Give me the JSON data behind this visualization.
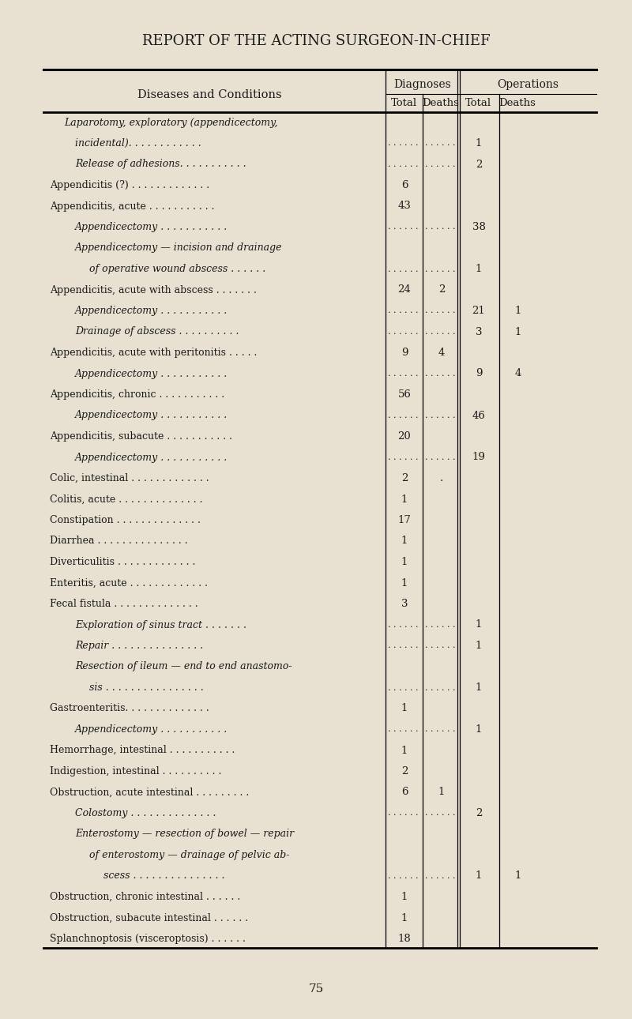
{
  "title": "REPORT OF THE ACTING SURGEON-IN-CHIEF",
  "page_number": "75",
  "bg_color": "#e8e0d0",
  "header_col1": "Diseases and Conditions",
  "header_diag": "Diagnoses",
  "header_ops": "Operations",
  "header_total": "Total",
  "header_deaths": "Deaths",
  "rows": [
    {
      "indent": 1,
      "text": "Laparotomy, exploratory (appendicectomy,",
      "diag_total": "",
      "diag_deaths": "",
      "ops_total": "",
      "ops_deaths": "",
      "dots_diag": false
    },
    {
      "indent": 2,
      "text": "incidental). . . . . . . . . . . .",
      "diag_total": "",
      "diag_deaths": "",
      "ops_total": "1",
      "ops_deaths": "",
      "dots_diag": true
    },
    {
      "indent": 2,
      "text": "Release of adhesions. . . . . . . . . . .",
      "diag_total": "",
      "diag_deaths": "",
      "ops_total": "2",
      "ops_deaths": "",
      "dots_diag": true
    },
    {
      "indent": 0,
      "text": "Appendicitis (?) . . . . . . . . . . . . .",
      "diag_total": "6",
      "diag_deaths": "",
      "ops_total": "",
      "ops_deaths": "",
      "dots_diag": false
    },
    {
      "indent": 0,
      "text": "Appendicitis, acute . . . . . . . . . . .",
      "diag_total": "43",
      "diag_deaths": "",
      "ops_total": "",
      "ops_deaths": "",
      "dots_diag": false
    },
    {
      "indent": 2,
      "text": "Appendicectomy . . . . . . . . . . .",
      "diag_total": "",
      "diag_deaths": "",
      "ops_total": "38",
      "ops_deaths": "",
      "dots_diag": true
    },
    {
      "indent": 2,
      "text": "Appendicectomy — incision and drainage",
      "diag_total": "",
      "diag_deaths": "",
      "ops_total": "",
      "ops_deaths": "",
      "dots_diag": false
    },
    {
      "indent": 3,
      "text": "of operative wound abscess . . . . . .",
      "diag_total": "",
      "diag_deaths": "",
      "ops_total": "1",
      "ops_deaths": "",
      "dots_diag": true
    },
    {
      "indent": 0,
      "text": "Appendicitis, acute with abscess . . . . . . .",
      "diag_total": "24",
      "diag_deaths": "2",
      "ops_total": "",
      "ops_deaths": "",
      "dots_diag": false
    },
    {
      "indent": 2,
      "text": "Appendicectomy . . . . . . . . . . .",
      "diag_total": "",
      "diag_deaths": "",
      "ops_total": "21",
      "ops_deaths": "1",
      "dots_diag": true
    },
    {
      "indent": 2,
      "text": "Drainage of abscess . . . . . . . . . .",
      "diag_total": "",
      "diag_deaths": "",
      "ops_total": "3",
      "ops_deaths": "1",
      "dots_diag": true
    },
    {
      "indent": 0,
      "text": "Appendicitis, acute with peritonitis . . . . .",
      "diag_total": "9",
      "diag_deaths": "4",
      "ops_total": "",
      "ops_deaths": "",
      "dots_diag": false
    },
    {
      "indent": 2,
      "text": "Appendicectomy . . . . . . . . . . .",
      "diag_total": "",
      "diag_deaths": "",
      "ops_total": "9",
      "ops_deaths": "4",
      "dots_diag": true
    },
    {
      "indent": 0,
      "text": "Appendicitis, chronic . . . . . . . . . . .",
      "diag_total": "56",
      "diag_deaths": "",
      "ops_total": "",
      "ops_deaths": "",
      "dots_diag": false
    },
    {
      "indent": 2,
      "text": "Appendicectomy . . . . . . . . . . .",
      "diag_total": "",
      "diag_deaths": "",
      "ops_total": "46",
      "ops_deaths": "",
      "dots_diag": true
    },
    {
      "indent": 0,
      "text": "Appendicitis, subacute . . . . . . . . . . .",
      "diag_total": "20",
      "diag_deaths": "",
      "ops_total": "",
      "ops_deaths": "",
      "dots_diag": false
    },
    {
      "indent": 2,
      "text": "Appendicectomy . . . . . . . . . . .",
      "diag_total": "",
      "diag_deaths": "",
      "ops_total": "19",
      "ops_deaths": "",
      "dots_diag": true
    },
    {
      "indent": 0,
      "text": "Colic, intestinal . . . . . . . . . . . . .",
      "diag_total": "2",
      "diag_deaths": ".",
      "ops_total": "",
      "ops_deaths": "",
      "dots_diag": false
    },
    {
      "indent": 0,
      "text": "Colitis, acute . . . . . . . . . . . . . .",
      "diag_total": "1",
      "diag_deaths": "",
      "ops_total": "",
      "ops_deaths": "",
      "dots_diag": false
    },
    {
      "indent": 0,
      "text": "Constipation . . . . . . . . . . . . . .",
      "diag_total": "17",
      "diag_deaths": "",
      "ops_total": "",
      "ops_deaths": "",
      "dots_diag": false
    },
    {
      "indent": 0,
      "text": "Diarrhea . . . . . . . . . . . . . . .",
      "diag_total": "1",
      "diag_deaths": "",
      "ops_total": "",
      "ops_deaths": "",
      "dots_diag": false
    },
    {
      "indent": 0,
      "text": "Diverticulitis . . . . . . . . . . . . .",
      "diag_total": "1",
      "diag_deaths": "",
      "ops_total": "",
      "ops_deaths": "",
      "dots_diag": false
    },
    {
      "indent": 0,
      "text": "Enteritis, acute . . . . . . . . . . . . .",
      "diag_total": "1",
      "diag_deaths": "",
      "ops_total": "",
      "ops_deaths": "",
      "dots_diag": false
    },
    {
      "indent": 0,
      "text": "Fecal fistula . . . . . . . . . . . . . .",
      "diag_total": "3",
      "diag_deaths": "",
      "ops_total": "",
      "ops_deaths": "",
      "dots_diag": false
    },
    {
      "indent": 2,
      "text": "Exploration of sinus tract . . . . . . .",
      "diag_total": "",
      "diag_deaths": "",
      "ops_total": "1",
      "ops_deaths": "",
      "dots_diag": true
    },
    {
      "indent": 2,
      "text": "Repair . . . . . . . . . . . . . . .",
      "diag_total": "",
      "diag_deaths": "",
      "ops_total": "1",
      "ops_deaths": "",
      "dots_diag": true
    },
    {
      "indent": 2,
      "text": "Resection of ileum — end to end anastomo-",
      "diag_total": "",
      "diag_deaths": "",
      "ops_total": "",
      "ops_deaths": "",
      "dots_diag": false
    },
    {
      "indent": 3,
      "text": "sis . . . . . . . . . . . . . . . .",
      "diag_total": "",
      "diag_deaths": "",
      "ops_total": "1",
      "ops_deaths": "",
      "dots_diag": true
    },
    {
      "indent": 0,
      "text": "Gastroenteritis. . . . . . . . . . . . . .",
      "diag_total": "1",
      "diag_deaths": "",
      "ops_total": "",
      "ops_deaths": "",
      "dots_diag": false
    },
    {
      "indent": 2,
      "text": "Appendicectomy . . . . . . . . . . .",
      "diag_total": "",
      "diag_deaths": "",
      "ops_total": "1",
      "ops_deaths": "",
      "dots_diag": true
    },
    {
      "indent": 0,
      "text": "Hemorrhage, intestinal . . . . . . . . . . .",
      "diag_total": "1",
      "diag_deaths": "",
      "ops_total": "",
      "ops_deaths": "",
      "dots_diag": false
    },
    {
      "indent": 0,
      "text": "Indigestion, intestinal . . . . . . . . . .",
      "diag_total": "2",
      "diag_deaths": "",
      "ops_total": "",
      "ops_deaths": "",
      "dots_diag": false
    },
    {
      "indent": 0,
      "text": "Obstruction, acute intestinal . . . . . . . . .",
      "diag_total": "6",
      "diag_deaths": "1",
      "ops_total": "",
      "ops_deaths": "",
      "dots_diag": false
    },
    {
      "indent": 2,
      "text": "Colostomy . . . . . . . . . . . . . .",
      "diag_total": "",
      "diag_deaths": "",
      "ops_total": "2",
      "ops_deaths": "",
      "dots_diag": true
    },
    {
      "indent": 2,
      "text": "Enterostomy — resection of bowel — repair",
      "diag_total": "",
      "diag_deaths": "",
      "ops_total": "",
      "ops_deaths": "",
      "dots_diag": false
    },
    {
      "indent": 3,
      "text": "of enterostomy — drainage of pelvic ab-",
      "diag_total": "",
      "diag_deaths": "",
      "ops_total": "",
      "ops_deaths": "",
      "dots_diag": false
    },
    {
      "indent": 4,
      "text": "scess . . . . . . . . . . . . . . .",
      "diag_total": "",
      "diag_deaths": "",
      "ops_total": "1",
      "ops_deaths": "1",
      "dots_diag": true
    },
    {
      "indent": 0,
      "text": "Obstruction, chronic intestinal . . . . . .",
      "diag_total": "1",
      "diag_deaths": "",
      "ops_total": "",
      "ops_deaths": "",
      "dots_diag": false
    },
    {
      "indent": 0,
      "text": "Obstruction, subacute intestinal . . . . . .",
      "diag_total": "1",
      "diag_deaths": "",
      "ops_total": "",
      "ops_deaths": "",
      "dots_diag": false
    },
    {
      "indent": 0,
      "text": "Splanchnoptosis (visceroptosis) . . . . . .",
      "diag_total": "18",
      "diag_deaths": "",
      "ops_total": "",
      "ops_deaths": "",
      "dots_diag": false
    }
  ]
}
